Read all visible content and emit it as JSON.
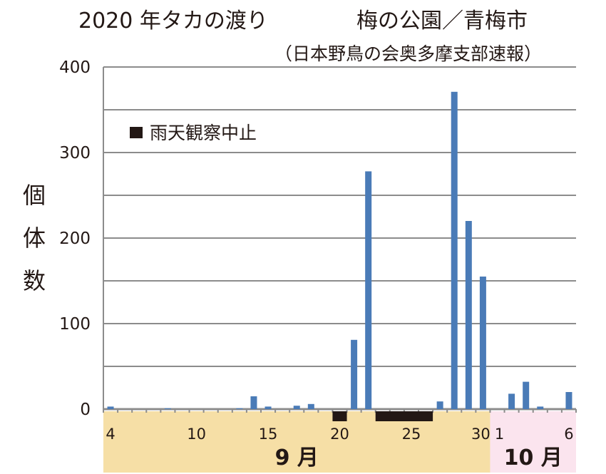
{
  "header": {
    "title": "2020 年タカの渡り",
    "location": "梅の公園／青梅市",
    "subtitle": "（日本野鳥の会奥多摩支部速報）"
  },
  "colors": {
    "bar": "#4a7bb7",
    "grid": "#8c8c8c",
    "rain": "#231815",
    "september_band": "#f6dfa6",
    "october_band": "#fbe4ee"
  },
  "chart_data": {
    "type": "bar",
    "ylabel": "個体数",
    "ylim": [
      0,
      400
    ],
    "yticks": [
      0,
      100,
      200,
      300,
      400
    ],
    "grid": true,
    "legend": {
      "label": "雨天観察中止",
      "placement": "top-left"
    },
    "months": [
      {
        "label": "9 月",
        "start_day": 4,
        "end_day": 30
      },
      {
        "label": "10 月",
        "start_day": 1,
        "end_day": 6
      }
    ],
    "x_tick_labels": [
      "4",
      "10",
      "15",
      "20",
      "25",
      "30",
      "1",
      "6"
    ],
    "days": [
      "9/4",
      "9/5",
      "9/6",
      "9/7",
      "9/8",
      "9/9",
      "9/10",
      "9/11",
      "9/12",
      "9/13",
      "9/14",
      "9/15",
      "9/16",
      "9/17",
      "9/18",
      "9/19",
      "9/20",
      "9/21",
      "9/22",
      "9/23",
      "9/24",
      "9/25",
      "9/26",
      "9/27",
      "9/28",
      "9/29",
      "9/30",
      "10/1",
      "10/2",
      "10/3",
      "10/4",
      "10/5",
      "10/6"
    ],
    "values": [
      3,
      0,
      0,
      0,
      1,
      0,
      0,
      0,
      0,
      1,
      15,
      3,
      0,
      4,
      6,
      0,
      0,
      81,
      278,
      0,
      0,
      0,
      0,
      9,
      371,
      220,
      155,
      0,
      18,
      32,
      3,
      0,
      20
    ],
    "rain_cancelled_periods": [
      {
        "start": "9/20",
        "end": "9/20"
      },
      {
        "start": "9/23",
        "end": "9/26"
      }
    ]
  }
}
